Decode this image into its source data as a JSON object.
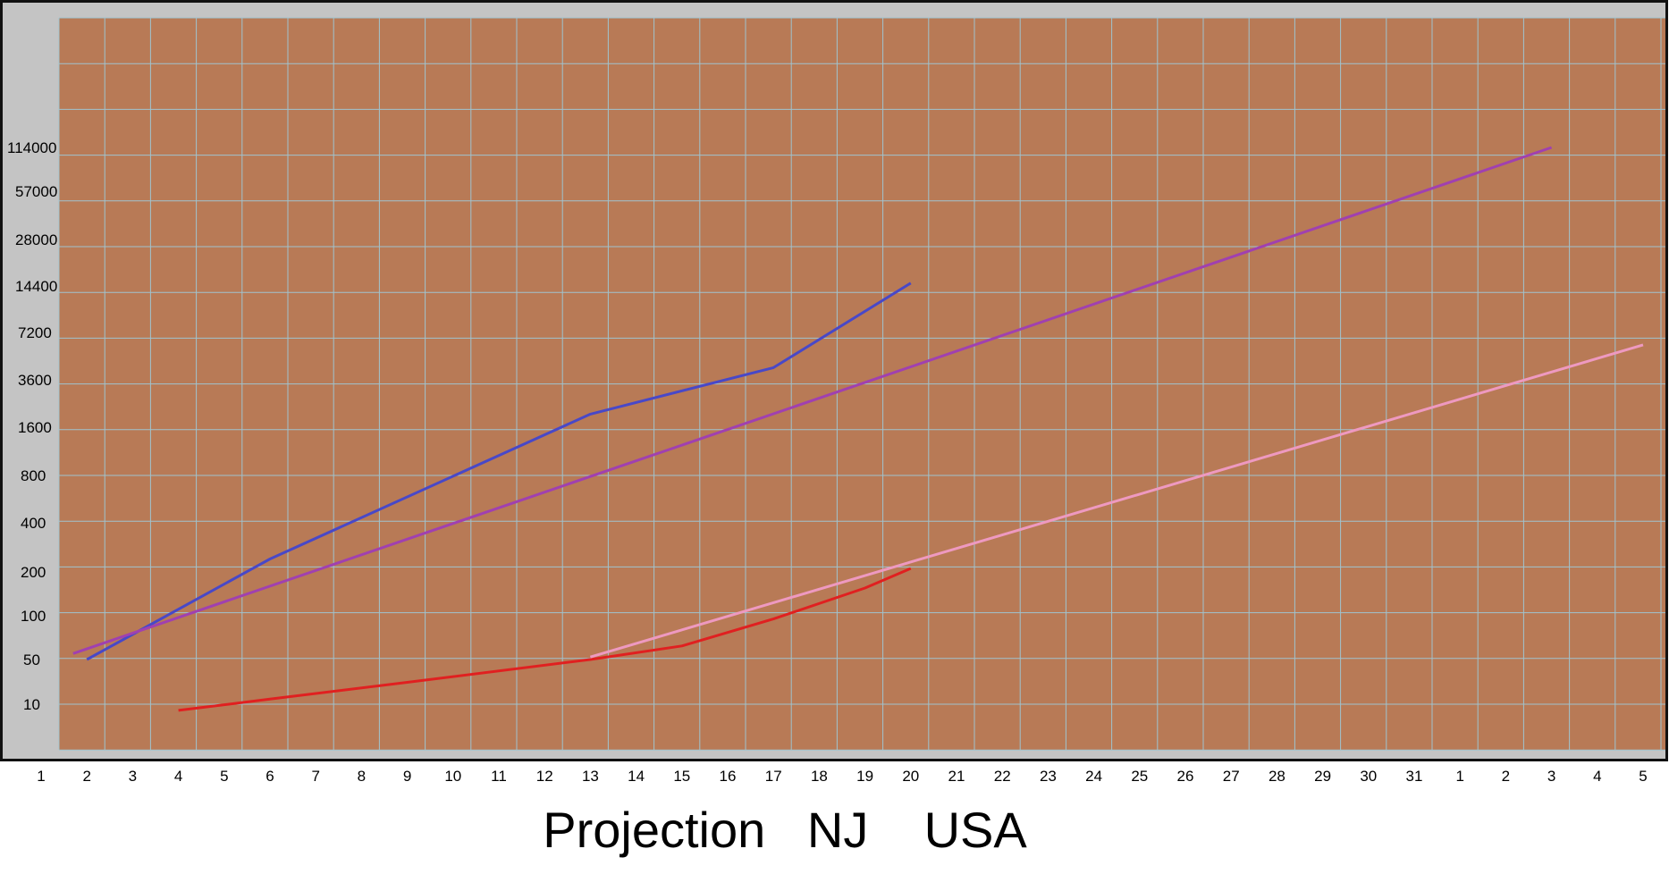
{
  "chart_data": {
    "type": "line",
    "title": "Projection   NJ    USA",
    "x_tick_labels": [
      "1",
      "2",
      "3",
      "4",
      "5",
      "6",
      "7",
      "8",
      "9",
      "10",
      "11",
      "12",
      "13",
      "14",
      "15",
      "16",
      "17",
      "18",
      "19",
      "20",
      "21",
      "22",
      "23",
      "24",
      "25",
      "26",
      "27",
      "28",
      "29",
      "30",
      "31",
      "1",
      "2",
      "3",
      "4",
      "5"
    ],
    "y_tick_labels": [
      "10",
      "50",
      "100",
      "200",
      "400",
      "800",
      "1600",
      "3600",
      "7200",
      "14400",
      "28000",
      "57000",
      "114000"
    ],
    "grid": true,
    "colors": {
      "plot_background": "#b87a56",
      "grid": "#9fc3cf",
      "frame_bg": "#c4c4c4",
      "border": "#111111"
    },
    "series": [
      {
        "color": "#4848c8",
        "points": [
          [
            2,
            50
          ],
          [
            6,
            240
          ],
          [
            13,
            2000
          ],
          [
            17,
            4300
          ],
          [
            20,
            15000
          ]
        ]
      },
      {
        "color": "#a040b0",
        "points": [
          [
            1.7,
            55
          ],
          [
            34,
            114000
          ]
        ]
      },
      {
        "color": "#e02020",
        "points": [
          [
            4,
            8
          ],
          [
            6,
            12
          ],
          [
            9,
            22
          ],
          [
            13,
            50
          ],
          [
            15,
            62
          ],
          [
            17,
            95
          ],
          [
            19,
            155
          ],
          [
            20,
            210
          ]
        ]
      },
      {
        "color": "#ee99c0",
        "points": [
          [
            13,
            52
          ],
          [
            36,
            6000
          ]
        ]
      }
    ]
  }
}
